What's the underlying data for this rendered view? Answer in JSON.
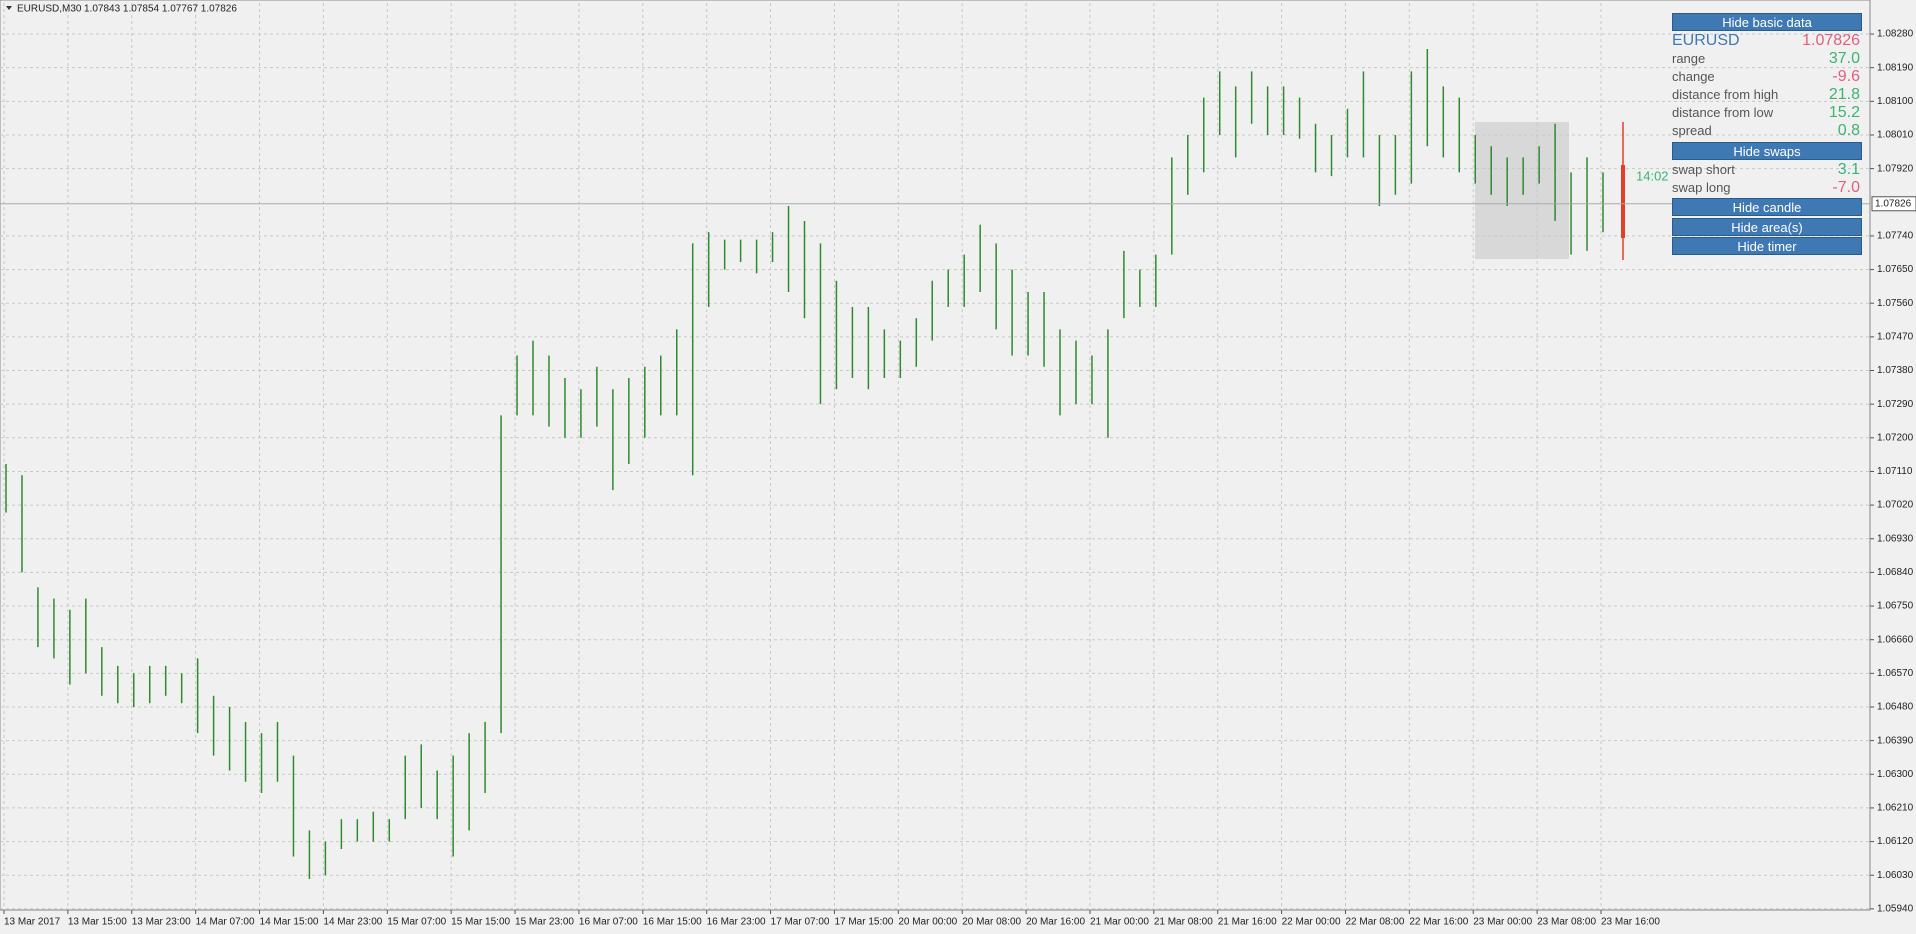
{
  "chart_data": {
    "type": "ohlc",
    "title": "EURUSD,M30",
    "quote": "1.07843 1.07854 1.07767 1.07826",
    "x_labels": [
      "13 Mar 2017",
      "13 Mar 15:00",
      "13 Mar 23:00",
      "14 Mar 07:00",
      "14 Mar 15:00",
      "14 Mar 23:00",
      "15 Mar 07:00",
      "15 Mar 15:00",
      "15 Mar 23:00",
      "16 Mar 07:00",
      "16 Mar 15:00",
      "16 Mar 23:00",
      "17 Mar 07:00",
      "17 Mar 15:00",
      "20 Mar 00:00",
      "20 Mar 08:00",
      "20 Mar 16:00",
      "21 Mar 00:00",
      "21 Mar 08:00",
      "21 Mar 16:00",
      "22 Mar 00:00",
      "22 Mar 08:00",
      "22 Mar 16:00",
      "23 Mar 00:00",
      "23 Mar 08:00",
      "23 Mar 16:00"
    ],
    "bars": {
      "high": [
        1.0713,
        1.071,
        1.068,
        1.0677,
        1.0674,
        1.0677,
        1.0664,
        1.0659,
        1.0657,
        1.0659,
        1.0659,
        1.0657,
        1.0661,
        1.0651,
        1.0648,
        1.0644,
        1.0641,
        1.0644,
        1.0635,
        1.0615,
        1.0612,
        1.0618,
        1.0618,
        1.062,
        1.0618,
        1.0635,
        1.0638,
        1.0631,
        1.0635,
        1.0641,
        1.0644,
        1.0726,
        1.0742,
        1.0746,
        1.0742,
        1.0736,
        1.0733,
        1.0739,
        1.0733,
        1.0736,
        1.0739,
        1.0742,
        1.0749,
        1.0772,
        1.0775,
        1.0773,
        1.0773,
        1.0773,
        1.0775,
        1.0782,
        1.0778,
        1.0772,
        1.0762,
        1.0755,
        1.0755,
        1.0749,
        1.0746,
        1.0752,
        1.0762,
        1.0765,
        1.0769,
        1.0777,
        1.0772,
        1.0765,
        1.0759,
        1.0759,
        1.0749,
        1.0746,
        1.0742,
        1.0749,
        1.077,
        1.0765,
        1.0769,
        1.0795,
        1.0801,
        1.0811,
        1.0818,
        1.0814,
        1.0818,
        1.0814,
        1.0814,
        1.0811,
        1.0804,
        1.0801,
        1.0808,
        1.0818,
        1.0801,
        1.0801,
        1.0818,
        1.0824,
        1.0814,
        1.0811,
        1.0801,
        1.0798,
        1.0795,
        1.0795,
        1.0798,
        1.0804,
        1.0791,
        1.0795,
        1.0791
      ],
      "low": [
        1.07,
        1.0684,
        1.0664,
        1.0661,
        1.0654,
        1.0657,
        1.0651,
        1.0649,
        1.0648,
        1.0649,
        1.0651,
        1.0649,
        1.0641,
        1.0635,
        1.0631,
        1.0628,
        1.0625,
        1.0628,
        1.0608,
        1.0602,
        1.0603,
        1.061,
        1.0612,
        1.0612,
        1.0612,
        1.0618,
        1.0621,
        1.0618,
        1.0608,
        1.0615,
        1.0625,
        1.0641,
        1.0726,
        1.0726,
        1.0723,
        1.072,
        1.072,
        1.0723,
        1.0706,
        1.0713,
        1.072,
        1.0726,
        1.0726,
        1.071,
        1.0755,
        1.0765,
        1.0767,
        1.0764,
        1.0767,
        1.0759,
        1.0752,
        1.0729,
        1.0733,
        1.0736,
        1.0733,
        1.0736,
        1.0736,
        1.0739,
        1.0746,
        1.0755,
        1.0755,
        1.0759,
        1.0749,
        1.0742,
        1.0742,
        1.0739,
        1.0726,
        1.0729,
        1.0729,
        1.072,
        1.0752,
        1.0755,
        1.0755,
        1.0769,
        1.0785,
        1.0791,
        1.0801,
        1.0795,
        1.0804,
        1.0801,
        1.0801,
        1.08,
        1.0791,
        1.079,
        1.0795,
        1.0795,
        1.0782,
        1.0785,
        1.0788,
        1.0798,
        1.0795,
        1.0791,
        1.0788,
        1.0785,
        1.0782,
        1.0785,
        1.0788,
        1.0778,
        1.0769,
        1.077,
        1.0775
      ]
    },
    "color": "#2f8a2f",
    "ylim": [
      1.05937,
      1.08363
    ],
    "yticks": [
      {
        "value": 1.0828,
        "label": "1.08280"
      },
      {
        "value": 1.0819,
        "label": "1.08190"
      },
      {
        "value": 1.081,
        "label": "1.08100"
      },
      {
        "value": 1.0801,
        "label": "1.08010"
      },
      {
        "value": 1.0792,
        "label": "1.07920"
      },
      {
        "value": 1.0774,
        "label": "1.07740"
      },
      {
        "value": 1.0765,
        "label": "1.07650"
      },
      {
        "value": 1.0756,
        "label": "1.07560"
      },
      {
        "value": 1.0747,
        "label": "1.07470"
      },
      {
        "value": 1.0738,
        "label": "1.07380"
      },
      {
        "value": 1.0729,
        "label": "1.07290"
      },
      {
        "value": 1.072,
        "label": "1.07200"
      },
      {
        "value": 1.0711,
        "label": "1.07110"
      },
      {
        "value": 1.0702,
        "label": "1.07020"
      },
      {
        "value": 1.0693,
        "label": "1.06930"
      },
      {
        "value": 1.0684,
        "label": "1.06840"
      },
      {
        "value": 1.0675,
        "label": "1.06750"
      },
      {
        "value": 1.0666,
        "label": "1.06660"
      },
      {
        "value": 1.0657,
        "label": "1.06570"
      },
      {
        "value": 1.0648,
        "label": "1.06480"
      },
      {
        "value": 1.0639,
        "label": "1.06390"
      },
      {
        "value": 1.063,
        "label": "1.06300"
      },
      {
        "value": 1.0621,
        "label": "1.06210"
      },
      {
        "value": 1.0612,
        "label": "1.06120"
      },
      {
        "value": 1.0603,
        "label": "1.06030"
      },
      {
        "value": 1.0594,
        "label": "1.05940"
      }
    ],
    "current_price": {
      "value": 1.07826,
      "label": "1.07826"
    },
    "timer": "14:02",
    "grid": true
  },
  "panel": {
    "buttons": [
      "Hide basic data",
      "Hide swaps",
      "Hide candle",
      "Hide area(s)",
      "Hide timer"
    ],
    "symbol": "EURUSD",
    "price": "1.07826",
    "rows": [
      [
        "range",
        "37.0"
      ],
      [
        "change",
        "-9.6"
      ],
      [
        "distance from high",
        "21.8"
      ],
      [
        "distance from low",
        "15.2"
      ],
      [
        "spread",
        "0.8"
      ]
    ],
    "swaps": [
      [
        "swap short",
        "3.1"
      ],
      [
        "swap long",
        "-7.0"
      ]
    ]
  }
}
